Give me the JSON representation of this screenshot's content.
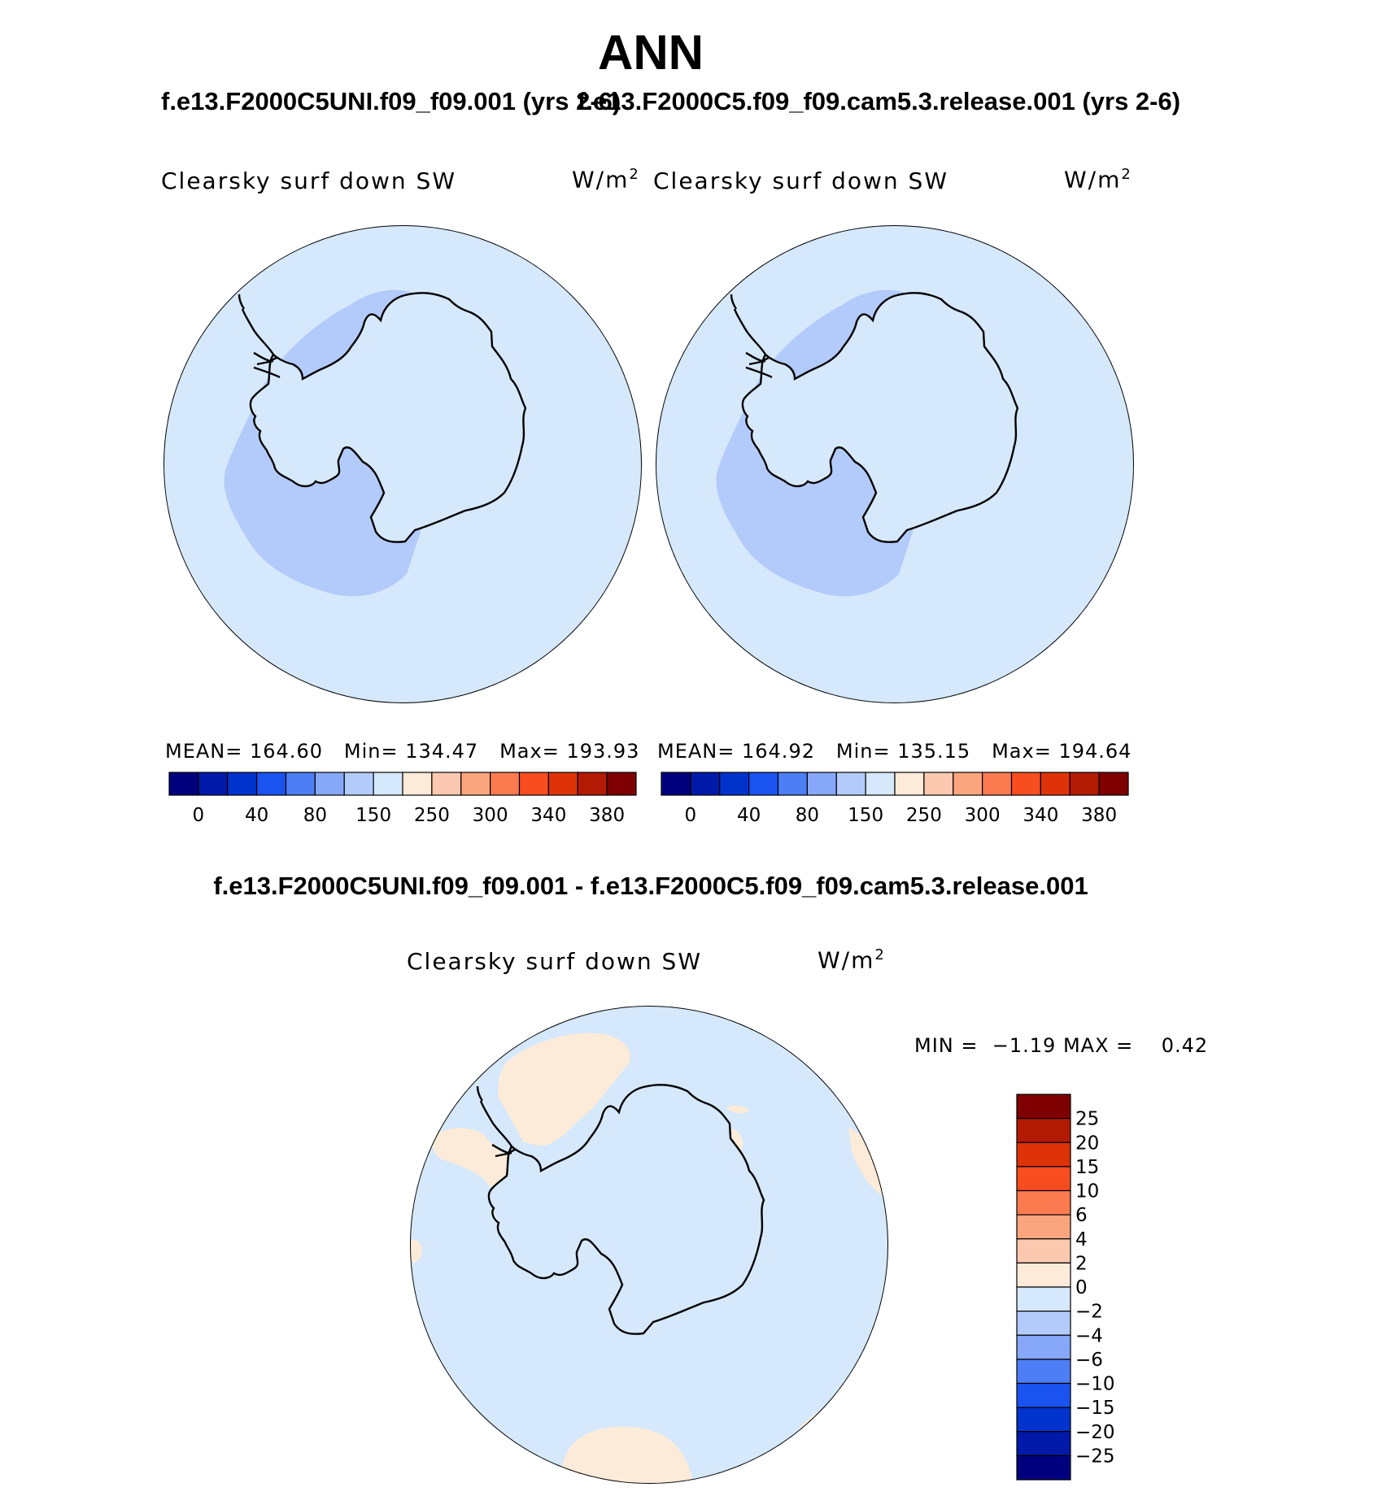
{
  "title": "ANN",
  "panels": [
    {
      "title": "f.e13.F2000C5UNI.f09_f09.001 (yrs 2-6)",
      "variable": "Clearsky surf down SW",
      "units": "W/m",
      "units_exp": "2",
      "stats": {
        "mean_label": "MEAN=",
        "mean": "164.60",
        "min_label": "Min=",
        "min": "134.47",
        "max_label": "Max=",
        "max": "193.93"
      }
    },
    {
      "title": "f.e13.F2000C5.f09_f09.cam5.3.release.001 (yrs 2-6)",
      "variable": "Clearsky surf down SW",
      "units": "W/m",
      "units_exp": "2",
      "stats": {
        "mean_label": "MEAN=",
        "mean": "164.92",
        "min_label": "Min=",
        "min": "135.15",
        "max_label": "Max=",
        "max": "194.64"
      }
    }
  ],
  "colorbar_top": {
    "colors": [
      "#00007f",
      "#0019a8",
      "#0033cc",
      "#1a53f0",
      "#4d7ef5",
      "#87a8f8",
      "#b3cbfa",
      "#d6e8fb",
      "#fdebd9",
      "#fcc9b0",
      "#fba57f",
      "#fb7a4f",
      "#f84d1f",
      "#de3308",
      "#b31a03",
      "#7f0000"
    ],
    "tick_labels": [
      "0",
      "40",
      "80",
      "150",
      "250",
      "300",
      "340",
      "380"
    ]
  },
  "difference": {
    "title": "f.e13.F2000C5UNI.f09_f09.001 - f.e13.F2000C5.f09_f09.cam5.3.release.001",
    "variable": "Clearsky surf down SW",
    "units": "W/m",
    "units_exp": "2",
    "stats": {
      "min_label": "MIN =",
      "min": "−1.19",
      "max_label": "MAX =",
      "max": "0.42"
    },
    "colorbar": {
      "colors_top_to_bottom": [
        "#7f0000",
        "#b31a03",
        "#de3308",
        "#f84d1f",
        "#fb7a4f",
        "#fba57f",
        "#fcc9b0",
        "#fdebd9",
        "#d6e8fb",
        "#b3cbfa",
        "#87a8f8",
        "#4d7ef5",
        "#1a53f0",
        "#0033cc",
        "#0019a8",
        "#00007f"
      ],
      "tick_labels": [
        "25",
        "20",
        "15",
        "10",
        "6",
        "4",
        "2",
        "0",
        "−2",
        "−4",
        "−6",
        "−10",
        "−15",
        "−20",
        "−25"
      ]
    }
  },
  "map_colors": {
    "ocean_light": "#d6e8fb",
    "coast_blue": "#b3cbfa",
    "positive_diff": "#fdebd9"
  }
}
